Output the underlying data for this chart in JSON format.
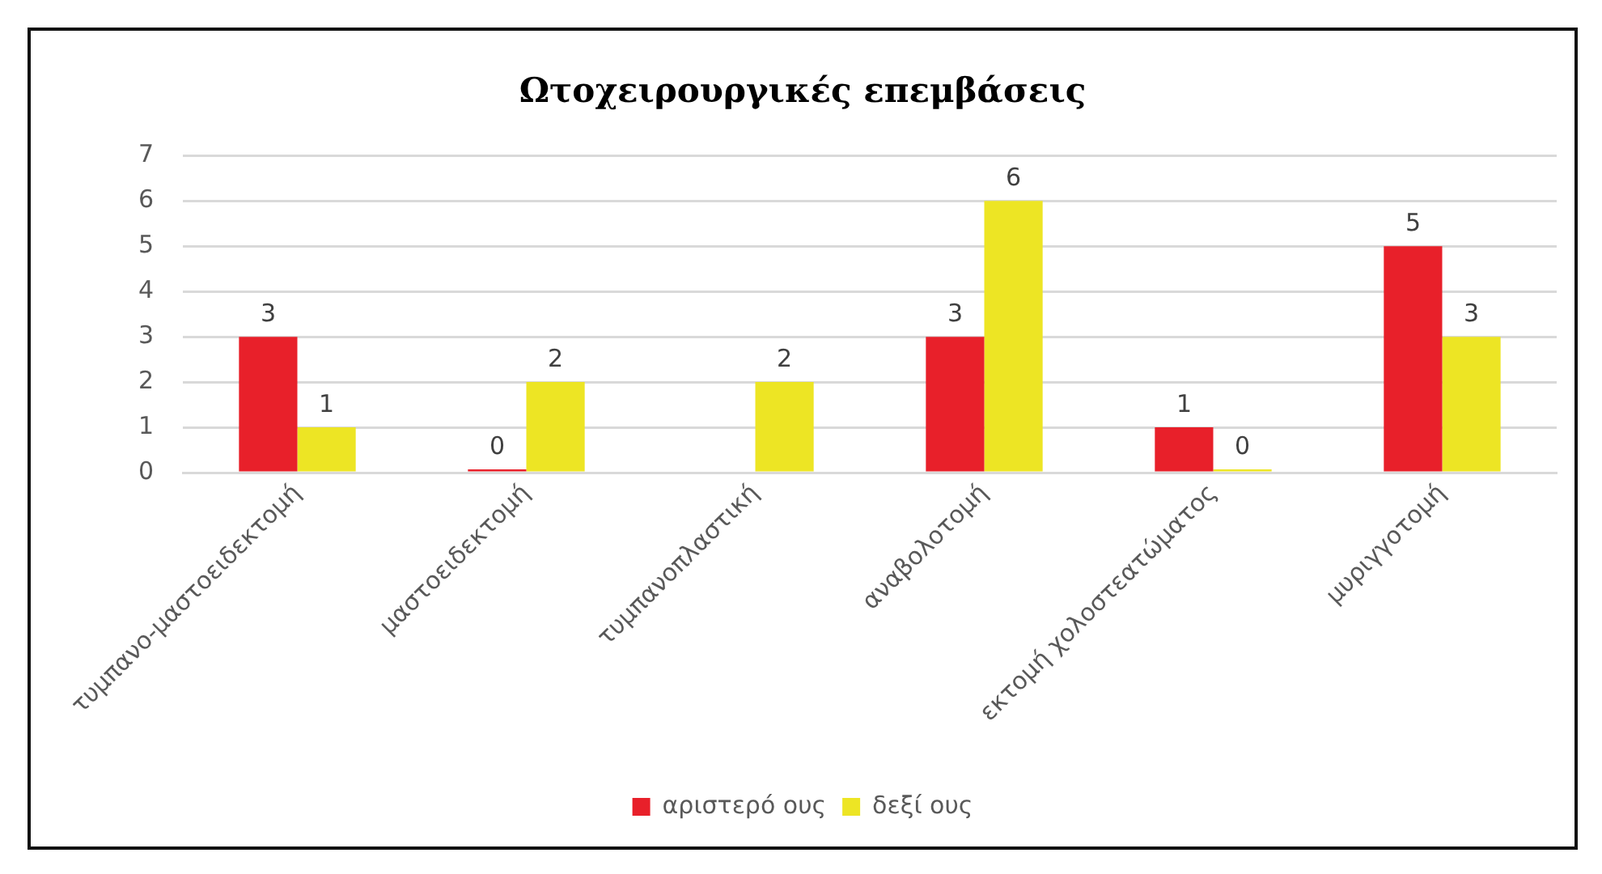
{
  "chart_data": {
    "type": "bar",
    "title": "Ωτοχειρουργικές επεμβάσεις",
    "categories": [
      "τυμπανο-μαστοειδεκτομή",
      "μαστοειδεκτομή",
      "τυμπανοπλαστική",
      "αναβολοτομή",
      "εκτομή χολοστεατώματος",
      "μυριγγοτομή"
    ],
    "series": [
      {
        "name": "αριστερό ους",
        "color": "#e8202a",
        "values": [
          3,
          0,
          null,
          3,
          1,
          5
        ]
      },
      {
        "name": "δεξί ους",
        "color": "#ede524",
        "values": [
          1,
          2,
          2,
          6,
          0,
          3
        ]
      }
    ],
    "ylim": [
      0,
      7
    ],
    "yticks": [
      0,
      1,
      2,
      3,
      4,
      5,
      6,
      7
    ],
    "grid": "y",
    "legend": "bottom",
    "data_labels": true
  }
}
